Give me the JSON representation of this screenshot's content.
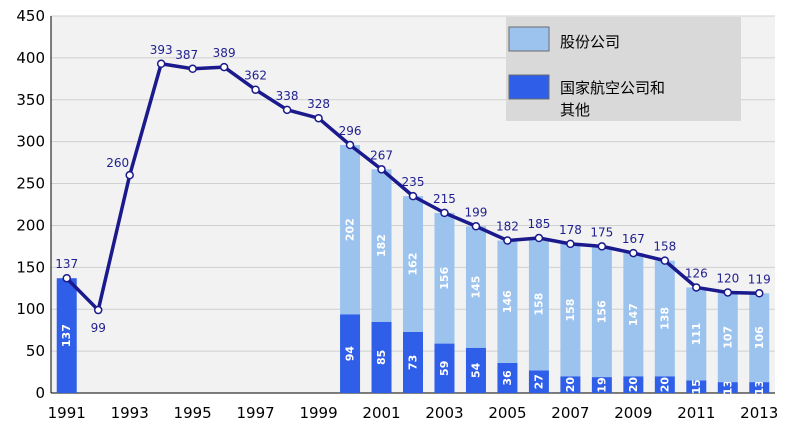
{
  "chart_data": {
    "type": "bar",
    "years": [
      1991,
      1992,
      1993,
      1994,
      1995,
      1996,
      1997,
      1998,
      1999,
      2000,
      2001,
      2002,
      2003,
      2004,
      2005,
      2006,
      2007,
      2008,
      2009,
      2010,
      2011,
      2012,
      2013
    ],
    "x_tick_labels": [
      "1991",
      "1993",
      "1995",
      "1997",
      "1999",
      "2001",
      "2003",
      "2005",
      "2007",
      "2009",
      "2011",
      "2013"
    ],
    "y_tick_labels": [
      "0",
      "50",
      "100",
      "150",
      "200",
      "250",
      "300",
      "350",
      "400",
      "450"
    ],
    "ylim": [
      0,
      450
    ],
    "total_line": {
      "values": [
        137,
        99,
        260,
        393,
        387,
        389,
        362,
        338,
        328,
        296,
        267,
        235,
        215,
        199,
        182,
        185,
        178,
        175,
        167,
        158,
        126,
        120,
        119
      ],
      "labels": [
        "137",
        "99",
        "260",
        "393",
        "387",
        "389",
        "362",
        "338",
        "328",
        "296",
        "267",
        "235",
        "215",
        "199",
        "182",
        "185",
        "178",
        "175",
        "167",
        "158",
        "126",
        "120",
        "119"
      ]
    },
    "series": [
      {
        "name": "国家航空公司和其他",
        "color": "#2f5fe8",
        "years": [
          1991,
          2000,
          2001,
          2002,
          2003,
          2004,
          2005,
          2006,
          2007,
          2008,
          2009,
          2010,
          2011,
          2012,
          2013
        ],
        "values": [
          137,
          94,
          85,
          73,
          59,
          54,
          36,
          27,
          20,
          19,
          20,
          20,
          15,
          13,
          13
        ],
        "labels": [
          "137",
          "94",
          "85",
          "73",
          "59",
          "54",
          "36",
          "27",
          "20",
          "19",
          "20",
          "20",
          "15",
          "13",
          "13"
        ]
      },
      {
        "name": "股份公司",
        "color": "#9cc3ee",
        "years": [
          2000,
          2001,
          2002,
          2003,
          2004,
          2005,
          2006,
          2007,
          2008,
          2009,
          2010,
          2011,
          2012,
          2013
        ],
        "values": [
          202,
          182,
          162,
          156,
          145,
          146,
          158,
          158,
          156,
          147,
          138,
          111,
          107,
          106
        ],
        "labels": [
          "202",
          "182",
          "162",
          "156",
          "145",
          "146",
          "158",
          "158",
          "156",
          "147",
          "138",
          "111",
          "107",
          "106"
        ]
      }
    ],
    "legend": {
      "position": "top-right",
      "items": [
        {
          "label": "股份公司",
          "color": "#9cc3ee"
        },
        {
          "label": "国家航空公司和",
          "label2": "其他",
          "color": "#2f5fe8"
        }
      ]
    },
    "colors": {
      "plot_bg": "#f2f2f2",
      "grid": "#d0d0d0",
      "line": "#1a1a8c",
      "marker_fill": "#ffffff",
      "legend_bg": "#d9d9d9"
    }
  }
}
